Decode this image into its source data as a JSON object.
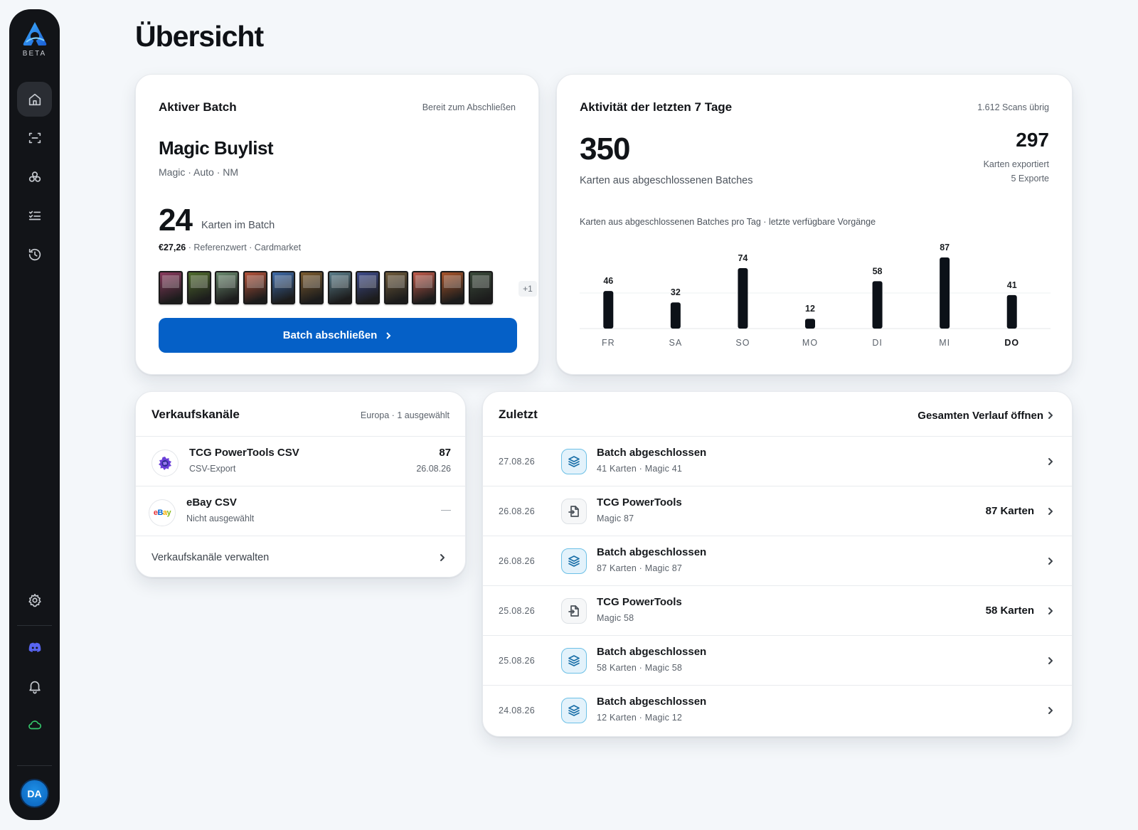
{
  "sidebar": {
    "beta_label": "BETA",
    "items": [
      {
        "icon": "home-icon"
      },
      {
        "icon": "scan-icon"
      },
      {
        "icon": "collection-icon"
      },
      {
        "icon": "checklist-icon"
      },
      {
        "icon": "history-icon"
      },
      {
        "icon": "gear-icon"
      },
      {
        "icon": "discord-icon"
      },
      {
        "icon": "bell-icon"
      },
      {
        "icon": "cloud-icon"
      }
    ],
    "avatar_initials": "DA"
  },
  "page_title": "Übersicht",
  "active_batch": {
    "title": "Aktiver Batch",
    "status": "Bereit zum Abschließen",
    "name": "Magic Buylist",
    "subtitle": "Magic · Auto · NM",
    "count": "24",
    "count_label": "Karten im Batch",
    "value": "€27,26",
    "value_label": "· Referenzwert · Cardmarket",
    "more_thumbs": "+1",
    "thumb_colors": [
      "#8a3b5e",
      "#4f6b2d",
      "#6a8a6e",
      "#b4533a",
      "#3d6aa8",
      "#7a5a2e",
      "#5a7d8a",
      "#3d4a8a",
      "#6e5a3a",
      "#c05a4a",
      "#a8542a",
      "#3a4a3a"
    ],
    "button_label": "Batch abschließen"
  },
  "activity": {
    "title": "Aktivität der letzten 7 Tage",
    "scans_left": "1.612 Scans übrig",
    "big_number": "350",
    "big_label": "Karten aus abgeschlossenen Batches",
    "exported_number": "297",
    "exported_label": "Karten exportiert",
    "exports_count": "5 Exporte",
    "chart_title": "Karten aus abgeschlossenen Batches pro Tag · letzte verfügbare Vorgänge"
  },
  "chart_data": {
    "type": "bar",
    "categories": [
      "FR",
      "SA",
      "SO",
      "MO",
      "DI",
      "MI",
      "DO"
    ],
    "values": [
      46,
      32,
      74,
      12,
      58,
      87,
      41
    ],
    "highlight_category": "DO",
    "ylim": [
      0,
      87
    ],
    "bar_color": "#0c1118",
    "grid": true
  },
  "channels": {
    "title": "Verkaufskanäle",
    "meta": "Europa · 1 ausgewählt",
    "items": [
      {
        "name": "TCG PowerTools CSV",
        "sub": "CSV-Export",
        "count": "87",
        "date": "26.08.26",
        "icon": "tcg-powertools-icon"
      },
      {
        "name": "eBay CSV",
        "sub": "Nicht ausgewählt",
        "count": "—",
        "icon": "ebay-icon",
        "icon_text": "eBay"
      }
    ],
    "manage_label": "Verkaufskanäle verwalten"
  },
  "recent": {
    "title": "Zuletzt",
    "open_all": "Gesamten Verlauf öffnen",
    "rows": [
      {
        "date": "27.08.26",
        "type": "batch",
        "title": "Batch abgeschlossen",
        "sub": "41 Karten · Magic 41",
        "count": ""
      },
      {
        "date": "26.08.26",
        "type": "export",
        "title": "TCG PowerTools",
        "sub": "Magic 87",
        "count": "87 Karten"
      },
      {
        "date": "26.08.26",
        "type": "batch",
        "title": "Batch abgeschlossen",
        "sub": "87 Karten · Magic 87",
        "count": ""
      },
      {
        "date": "25.08.26",
        "type": "export",
        "title": "TCG PowerTools",
        "sub": "Magic 58",
        "count": "58 Karten"
      },
      {
        "date": "25.08.26",
        "type": "batch",
        "title": "Batch abgeschlossen",
        "sub": "58 Karten · Magic 58",
        "count": ""
      },
      {
        "date": "24.08.26",
        "type": "batch",
        "title": "Batch abgeschlossen",
        "sub": "12 Karten · Magic 12",
        "count": ""
      }
    ]
  }
}
